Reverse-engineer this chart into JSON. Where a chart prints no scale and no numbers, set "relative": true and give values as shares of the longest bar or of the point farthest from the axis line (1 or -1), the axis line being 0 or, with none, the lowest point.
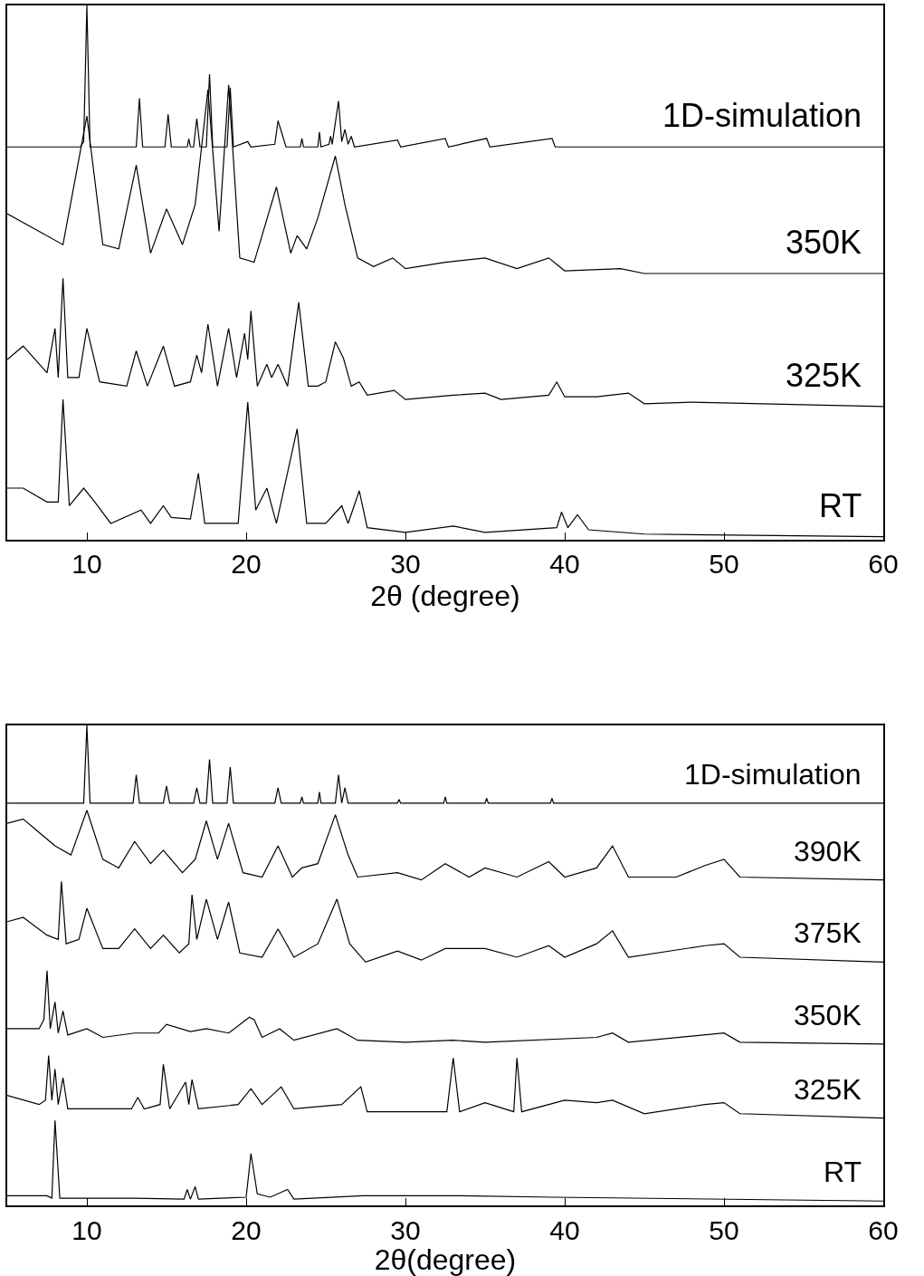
{
  "chart_data": [
    {
      "type": "line",
      "relative": true,
      "xlabel": "2θ (degree)",
      "xlim": [
        5,
        60
      ],
      "xticks": [
        10,
        20,
        30,
        40,
        50,
        60
      ],
      "series": [
        {
          "name": "1D-simulation",
          "color": "#000000",
          "x": [
            5,
            9.6,
            9.8,
            10.0,
            10.2,
            13.1,
            13.3,
            13.5,
            14.9,
            15.1,
            15.3,
            16.3,
            16.4,
            16.5,
            16.7,
            16.9,
            17.1,
            17.5,
            17.7,
            17.9,
            18.8,
            19.0,
            19.2,
            20.1,
            20.3,
            21.8,
            22.0,
            22.3,
            22.5,
            23.4,
            23.5,
            23.6,
            24.5,
            24.6,
            24.7,
            25.2,
            25.3,
            25.4,
            25.8,
            26.0,
            26.2,
            26.4,
            26.6,
            26.8,
            29.5,
            29.7,
            32.5,
            32.7,
            35.1,
            35.3,
            39.2,
            39.4,
            60
          ],
          "values": [
            0.735,
            0.735,
            0.745,
            1.0,
            0.735,
            0.735,
            0.826,
            0.735,
            0.735,
            0.796,
            0.735,
            0.735,
            0.75,
            0.735,
            0.735,
            0.788,
            0.735,
            0.735,
            0.871,
            0.735,
            0.735,
            0.846,
            0.735,
            0.745,
            0.735,
            0.74,
            0.784,
            0.755,
            0.735,
            0.735,
            0.751,
            0.735,
            0.735,
            0.763,
            0.735,
            0.74,
            0.755,
            0.74,
            0.821,
            0.745,
            0.768,
            0.74,
            0.755,
            0.735,
            0.748,
            0.735,
            0.751,
            0.735,
            0.751,
            0.735,
            0.751,
            0.735,
            0.735
          ]
        },
        {
          "name": "350K",
          "color": "#000000",
          "x": [
            5,
            7,
            8.5,
            10.0,
            11,
            12,
            13.1,
            14,
            15.0,
            16,
            16.8,
            17.6,
            18.3,
            18.9,
            19.6,
            20.5,
            21.9,
            22.8,
            23.2,
            23.8,
            24.5,
            25.6,
            26.2,
            27,
            28,
            29.2,
            30,
            32.5,
            35,
            37,
            39,
            40,
            43.5,
            45,
            60
          ],
          "values": [
            0.61,
            0.577,
            0.552,
            0.793,
            0.552,
            0.544,
            0.701,
            0.536,
            0.619,
            0.552,
            0.627,
            0.842,
            0.577,
            0.851,
            0.527,
            0.519,
            0.66,
            0.536,
            0.569,
            0.544,
            0.602,
            0.718,
            0.627,
            0.527,
            0.511,
            0.527,
            0.507,
            0.519,
            0.527,
            0.507,
            0.527,
            0.503,
            0.507,
            0.498,
            0.498
          ]
        },
        {
          "name": "325K",
          "color": "#000000",
          "x": [
            5,
            6,
            7.5,
            8.0,
            8.2,
            8.5,
            8.8,
            9.5,
            10.0,
            10.8,
            12.5,
            13.1,
            13.8,
            14.8,
            15.5,
            16.5,
            16.9,
            17.2,
            17.6,
            18.2,
            18.9,
            19.4,
            19.9,
            20.1,
            20.3,
            20.7,
            21.3,
            21.6,
            22.0,
            22.6,
            23.3,
            23.9,
            24.5,
            25.0,
            25.6,
            26.1,
            26.6,
            27.1,
            27.6,
            29.3,
            30,
            33,
            35,
            36,
            39,
            39.5,
            40,
            42,
            44,
            45,
            48,
            60
          ],
          "values": [
            0.337,
            0.362,
            0.312,
            0.395,
            0.303,
            0.489,
            0.303,
            0.303,
            0.395,
            0.295,
            0.287,
            0.353,
            0.287,
            0.362,
            0.287,
            0.295,
            0.345,
            0.312,
            0.403,
            0.287,
            0.395,
            0.303,
            0.386,
            0.337,
            0.428,
            0.287,
            0.328,
            0.303,
            0.328,
            0.287,
            0.444,
            0.287,
            0.287,
            0.295,
            0.37,
            0.34,
            0.287,
            0.295,
            0.27,
            0.279,
            0.262,
            0.27,
            0.274,
            0.262,
            0.27,
            0.295,
            0.267,
            0.267,
            0.274,
            0.254,
            0.257,
            0.249
          ]
        },
        {
          "name": "RT",
          "color": "#000000",
          "x": [
            5,
            6,
            7.5,
            8.2,
            8.5,
            8.9,
            9.8,
            10.5,
            11.5,
            13.4,
            14,
            14.8,
            15.3,
            16.5,
            17.0,
            17.4,
            19.5,
            20.1,
            20.6,
            21.3,
            21.9,
            23.2,
            23.8,
            25,
            26.0,
            26.4,
            27.1,
            27.6,
            30,
            33,
            35,
            39.5,
            39.8,
            40.2,
            40.8,
            41.5,
            45,
            60
          ],
          "values": [
            0.096,
            0.096,
            0.07,
            0.07,
            0.262,
            0.063,
            0.096,
            0.07,
            0.03,
            0.055,
            0.03,
            0.063,
            0.041,
            0.038,
            0.124,
            0.03,
            0.03,
            0.257,
            0.055,
            0.096,
            0.03,
            0.207,
            0.03,
            0.03,
            0.063,
            0.03,
            0.091,
            0.022,
            0.013,
            0.025,
            0.013,
            0.022,
            0.051,
            0.022,
            0.046,
            0.018,
            0.01,
            0.005
          ]
        }
      ]
    },
    {
      "type": "line",
      "relative": true,
      "xlabel": "2θ(degree)",
      "xlim": [
        5,
        60
      ],
      "xticks": [
        10,
        20,
        30,
        40,
        50,
        60
      ],
      "series": [
        {
          "name": "1D-simulation",
          "color": "#000000",
          "x": [
            5,
            9.8,
            10.0,
            10.2,
            12.9,
            13.1,
            13.3,
            14.8,
            15.0,
            15.2,
            16.7,
            16.9,
            17.1,
            17.5,
            17.7,
            17.9,
            18.8,
            19.0,
            19.2,
            21.8,
            22.0,
            22.2,
            23.4,
            23.5,
            23.6,
            24.5,
            24.6,
            24.7,
            25.6,
            25.8,
            26.0,
            26.2,
            26.4,
            29.5,
            29.6,
            29.7,
            32.4,
            32.5,
            32.6,
            35.0,
            35.1,
            35.2,
            39.1,
            39.2,
            39.3,
            60
          ],
          "values": [
            0.838,
            0.838,
            1.0,
            0.838,
            0.838,
            0.897,
            0.838,
            0.838,
            0.874,
            0.838,
            0.838,
            0.87,
            0.838,
            0.838,
            0.929,
            0.838,
            0.838,
            0.913,
            0.838,
            0.838,
            0.87,
            0.838,
            0.838,
            0.851,
            0.838,
            0.838,
            0.861,
            0.838,
            0.838,
            0.897,
            0.838,
            0.87,
            0.838,
            0.838,
            0.846,
            0.838,
            0.838,
            0.851,
            0.838,
            0.838,
            0.848,
            0.838,
            0.838,
            0.848,
            0.838,
            0.838
          ]
        },
        {
          "name": "390K",
          "color": "#000000",
          "x": [
            5,
            6,
            7,
            8,
            9,
            10.0,
            11,
            12,
            13.0,
            14,
            14.8,
            16,
            16.8,
            17.5,
            18.2,
            18.9,
            19.8,
            21,
            22.0,
            22.9,
            23.5,
            24.5,
            25.6,
            26.4,
            27,
            29.5,
            31,
            32.5,
            34,
            35,
            37,
            39,
            40,
            42,
            43.0,
            44,
            47,
            48.8,
            50.0,
            51,
            60
          ],
          "values": [
            0.796,
            0.805,
            0.777,
            0.749,
            0.73,
            0.823,
            0.721,
            0.703,
            0.758,
            0.712,
            0.74,
            0.693,
            0.721,
            0.801,
            0.721,
            0.796,
            0.693,
            0.684,
            0.749,
            0.684,
            0.703,
            0.712,
            0.814,
            0.73,
            0.684,
            0.693,
            0.678,
            0.712,
            0.684,
            0.703,
            0.684,
            0.716,
            0.684,
            0.703,
            0.749,
            0.684,
            0.684,
            0.708,
            0.721,
            0.684,
            0.678
          ]
        },
        {
          "name": "375K",
          "color": "#000000",
          "x": [
            5,
            6,
            7.5,
            8.2,
            8.4,
            8.7,
            9.5,
            10.0,
            11,
            12,
            13.0,
            14,
            14.8,
            15.8,
            16.4,
            16.6,
            16.9,
            17.5,
            18.2,
            18.9,
            19.6,
            21,
            22.0,
            23,
            24.5,
            25.7,
            26.5,
            27.5,
            29.5,
            31,
            32.5,
            35,
            37,
            39,
            40,
            42,
            43.0,
            44,
            48.8,
            50.0,
            51,
            60
          ],
          "values": [
            0.591,
            0.6,
            0.563,
            0.554,
            0.675,
            0.545,
            0.554,
            0.619,
            0.535,
            0.535,
            0.576,
            0.535,
            0.563,
            0.526,
            0.545,
            0.647,
            0.554,
            0.638,
            0.554,
            0.632,
            0.526,
            0.517,
            0.576,
            0.517,
            0.545,
            0.638,
            0.545,
            0.507,
            0.53,
            0.511,
            0.535,
            0.535,
            0.517,
            0.541,
            0.517,
            0.545,
            0.572,
            0.517,
            0.541,
            0.545,
            0.517,
            0.507
          ]
        },
        {
          "name": "350K",
          "color": "#000000",
          "x": [
            5,
            7,
            7.3,
            7.5,
            7.7,
            8.0,
            8.2,
            8.5,
            8.8,
            10.0,
            11,
            13.0,
            14.5,
            15.0,
            16.5,
            17.5,
            18.9,
            20.2,
            20.5,
            21,
            22.1,
            23,
            25.7,
            27,
            30,
            33,
            35,
            42,
            43,
            44,
            50.0,
            51,
            60
          ],
          "values": [
            0.368,
            0.368,
            0.387,
            0.489,
            0.368,
            0.424,
            0.359,
            0.405,
            0.355,
            0.368,
            0.35,
            0.359,
            0.359,
            0.377,
            0.362,
            0.368,
            0.359,
            0.392,
            0.387,
            0.35,
            0.368,
            0.344,
            0.368,
            0.344,
            0.34,
            0.344,
            0.34,
            0.35,
            0.359,
            0.34,
            0.359,
            0.34,
            0.336
          ]
        },
        {
          "name": "325K",
          "color": "#000000",
          "x": [
            5,
            7,
            7.4,
            7.6,
            7.8,
            8.0,
            8.2,
            8.5,
            8.8,
            10,
            12.8,
            13.2,
            13.6,
            14.6,
            14.8,
            15.2,
            16.2,
            16.4,
            16.6,
            17,
            19.5,
            20.3,
            21,
            22.2,
            23,
            26,
            27.2,
            27.6,
            32.6,
            33.0,
            33.4,
            35,
            36.8,
            37.0,
            37.3,
            40,
            42,
            43,
            45,
            48.8,
            50,
            51,
            60
          ],
          "values": [
            0.229,
            0.21,
            0.219,
            0.312,
            0.219,
            0.284,
            0.21,
            0.266,
            0.201,
            0.201,
            0.201,
            0.225,
            0.201,
            0.21,
            0.294,
            0.201,
            0.257,
            0.21,
            0.262,
            0.201,
            0.21,
            0.243,
            0.21,
            0.247,
            0.201,
            0.21,
            0.247,
            0.195,
            0.195,
            0.307,
            0.195,
            0.214,
            0.195,
            0.307,
            0.195,
            0.219,
            0.214,
            0.219,
            0.191,
            0.21,
            0.214,
            0.191,
            0.182
          ]
        },
        {
          "name": "RT",
          "color": "#000000",
          "x": [
            5,
            7.5,
            7.8,
            8.0,
            8.3,
            13,
            16.1,
            16.3,
            16.5,
            16.8,
            17,
            20.0,
            20.3,
            20.7,
            21.5,
            22.6,
            23,
            27.3,
            33.3,
            39.3,
            60
          ],
          "values": [
            0.02,
            0.02,
            0.015,
            0.177,
            0.015,
            0.015,
            0.013,
            0.033,
            0.013,
            0.039,
            0.013,
            0.017,
            0.108,
            0.024,
            0.017,
            0.033,
            0.013,
            0.02,
            0.02,
            0.017,
            0.009
          ]
        }
      ]
    }
  ]
}
